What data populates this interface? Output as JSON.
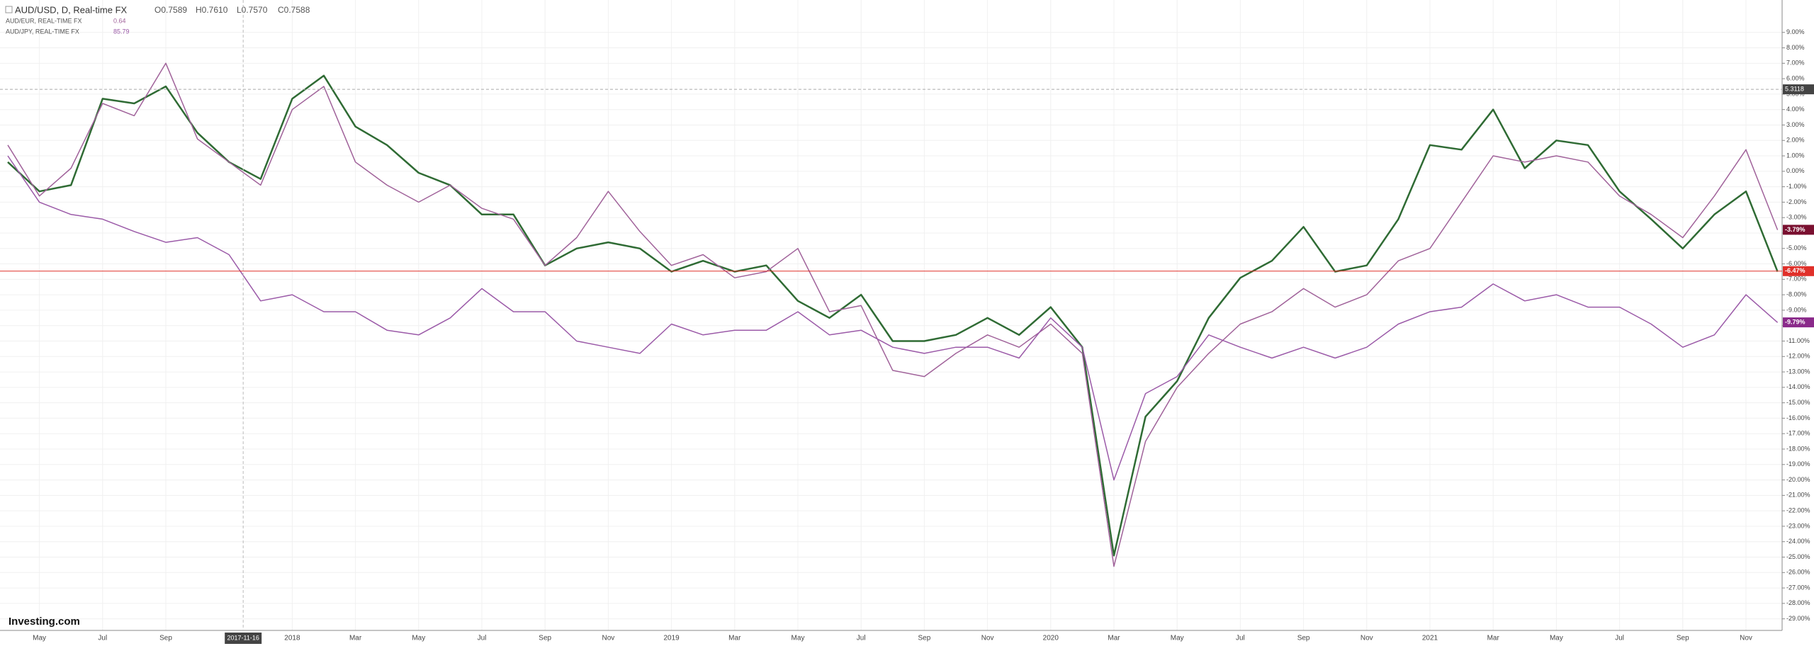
{
  "chart_data": {
    "type": "line",
    "header": {
      "symbol": "AUD/USD, D, Real-time FX",
      "ohlc": [
        "O0.7589",
        "H0.7610",
        "L0.7570",
        "C0.7588"
      ]
    },
    "logo": "Investing.com",
    "categories": [
      null,
      "May",
      null,
      "Jul",
      null,
      "Sep",
      null,
      null,
      null,
      "2018",
      null,
      "Mar",
      null,
      "May",
      null,
      "Jul",
      null,
      "Sep",
      null,
      "Nov",
      null,
      "2019",
      null,
      "Mar",
      null,
      "May",
      null,
      "Jul",
      null,
      "Sep",
      null,
      "Nov",
      null,
      "2020",
      null,
      "Mar",
      null,
      "May",
      null,
      "Jul",
      null,
      "Sep",
      null,
      "Nov",
      null,
      "2021",
      null,
      "Mar",
      null,
      "May",
      null,
      "Jul",
      null,
      "Sep",
      null,
      "Nov",
      null
    ],
    "series": [
      {
        "name": "AUD/USD",
        "color": "#2f6b34",
        "values": [
          0.6,
          -1.3,
          -0.9,
          4.7,
          4.4,
          5.5,
          2.5,
          0.6,
          -0.5,
          4.7,
          6.2,
          2.9,
          1.7,
          -0.1,
          -0.9,
          -2.8,
          -2.8,
          -6.1,
          -5,
          -4.6,
          -5,
          -6.5,
          -5.8,
          -6.5,
          -6.1,
          -8.4,
          -9.5,
          -8,
          -11,
          -11,
          -10.6,
          -9.5,
          -10.6,
          -8.8,
          -11.4,
          -24.9,
          -15.9,
          -13.6,
          -9.5,
          -6.9,
          -5.8,
          -3.6,
          -6.5,
          -6.1,
          -3.1,
          1.7,
          1.4,
          4,
          0.2,
          2,
          1.7,
          -1.3,
          -3.1,
          -5,
          -2.8,
          -1.3,
          -6.5
        ]
      },
      {
        "name": "AUD/EUR, REAL-TIME FX",
        "legend_value": 0.64,
        "color": "#a0629a",
        "values": [
          1.7,
          -1.6,
          0.2,
          4.4,
          3.6,
          7,
          2.1,
          0.6,
          -0.9,
          4,
          5.5,
          0.6,
          -0.9,
          -2,
          -0.9,
          -2.4,
          -3.1,
          -6.1,
          -4.3,
          -1.3,
          -3.9,
          -6.1,
          -5.4,
          -6.9,
          -6.5,
          -5,
          -9.1,
          -8.7,
          -12.9,
          -13.3,
          -11.8,
          -10.6,
          -11.4,
          -9.9,
          -11.8,
          -25.6,
          -17.5,
          -14,
          -11.8,
          -9.9,
          -9.1,
          -7.6,
          -8.8,
          -8,
          -5.8,
          -5,
          -2,
          1,
          0.6,
          1,
          0.6,
          -1.6,
          -2.8,
          -4.3,
          -1.6,
          1.4,
          -3.8
        ]
      },
      {
        "name": "AUD/JPY, REAL-TIME FX",
        "legend_value": 85.79,
        "color": "#9b5aa8",
        "values": [
          1,
          -2,
          -2.8,
          -3.1,
          -3.9,
          -4.6,
          -4.3,
          -5.4,
          -8.4,
          -8,
          -9.1,
          -9.1,
          -10.3,
          -10.6,
          -9.5,
          -7.6,
          -9.1,
          -9.1,
          -11,
          -11.4,
          -11.8,
          -9.9,
          -10.6,
          -10.3,
          -10.3,
          -9.1,
          -10.6,
          -10.3,
          -11.4,
          -11.8,
          -11.4,
          -11.4,
          -12.1,
          -9.5,
          -11.4,
          -20,
          -14.4,
          -13.3,
          -10.6,
          -11.4,
          -12.1,
          -11.4,
          -12.1,
          -11.4,
          -9.9,
          -9.1,
          -8.8,
          -7.3,
          -8.4,
          -8,
          -8.8,
          -8.8,
          -9.9,
          -11.4,
          -10.6,
          -8,
          -9.8
        ]
      }
    ],
    "price_labels": [
      {
        "value": -3.79,
        "label": "-3.79%",
        "color": "#7a1030"
      },
      {
        "value": -6.47,
        "label": "-6.47%",
        "color": "#e0302a"
      },
      {
        "value": -9.79,
        "label": "-9.79%",
        "color": "#8a2a8a"
      }
    ],
    "crosshair": {
      "date_label": "2017-11-16",
      "value": 5.3118
    },
    "ylim": [
      -29.75,
      11.1
    ],
    "yticks": [
      {
        "value": 9,
        "label": "9.00%"
      },
      {
        "value": 8,
        "label": "8.00%"
      },
      {
        "value": 7,
        "label": "7.00%"
      },
      {
        "value": 6,
        "label": "6.00%"
      },
      {
        "value": 5,
        "label": "5.00%"
      },
      {
        "value": 4,
        "label": "4.00%"
      },
      {
        "value": 3,
        "label": "3.00%"
      },
      {
        "value": 2,
        "label": "2.00%"
      },
      {
        "value": 1,
        "label": "1.00%"
      },
      {
        "value": 0,
        "label": "0.00%"
      },
      {
        "value": -1,
        "label": "-1.00%"
      },
      {
        "value": -2,
        "label": "-2.00%"
      },
      {
        "value": -3,
        "label": "-3.00%"
      },
      {
        "value": -4,
        "label": "-4.00%"
      },
      {
        "value": -5,
        "label": "-5.00%"
      },
      {
        "value": -6,
        "label": "-6.00%"
      },
      {
        "value": -7,
        "label": "-7.00%"
      },
      {
        "value": -8,
        "label": "-8.00%"
      },
      {
        "value": -9,
        "label": "-9.00%"
      },
      {
        "value": -10,
        "label": "-10.00%"
      },
      {
        "value": -11,
        "label": "-11.00%"
      },
      {
        "value": -12,
        "label": "-12.00%"
      },
      {
        "value": -13,
        "label": "-13.00%"
      },
      {
        "value": -14,
        "label": "-14.00%"
      },
      {
        "value": -15,
        "label": "-15.00%"
      },
      {
        "value": -16,
        "label": "-16.00%"
      },
      {
        "value": -17,
        "label": "-17.00%"
      },
      {
        "value": -18,
        "label": "-18.00%"
      },
      {
        "value": -19,
        "label": "-19.00%"
      },
      {
        "value": -20,
        "label": "-20.00%"
      },
      {
        "value": -21,
        "label": "-21.00%"
      },
      {
        "value": -22,
        "label": "-22.00%"
      },
      {
        "value": -23,
        "label": "-23.00%"
      },
      {
        "value": -24,
        "label": "-24.00%"
      },
      {
        "value": -25,
        "label": "-25.00%"
      },
      {
        "value": -26,
        "label": "-26.00%"
      },
      {
        "value": -27,
        "label": "-27.00%"
      },
      {
        "value": -28,
        "label": "-28.00%"
      },
      {
        "value": -29,
        "label": "-29.00%"
      }
    ],
    "grid": true
  }
}
